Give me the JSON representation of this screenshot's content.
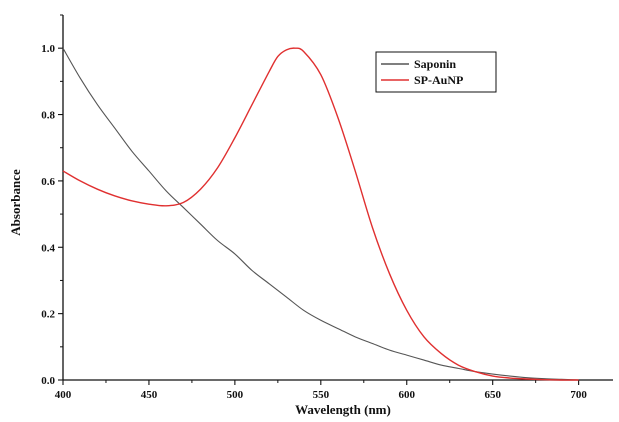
{
  "chart_data": {
    "type": "line",
    "title": "",
    "xlabel": "Wavelength (nm)",
    "ylabel": "Absorbance",
    "xlim": [
      400,
      720
    ],
    "ylim": [
      0,
      1.1
    ],
    "xticks": [
      400,
      450,
      500,
      550,
      600,
      650,
      700
    ],
    "xtick_labels": [
      "400",
      "450",
      "500",
      "550",
      "600",
      "650",
      "700"
    ],
    "yticks": [
      0,
      0.2,
      0.4,
      0.6,
      0.8,
      1.0
    ],
    "ytick_labels": [
      "0.0",
      "0.2",
      "0.4",
      "0.6",
      "0.8",
      "1.0"
    ],
    "grid": false,
    "legend_position": "top-right",
    "series": [
      {
        "name": "Saponin",
        "color": "#555555",
        "x": [
          400,
          410,
          420,
          430,
          440,
          450,
          460,
          470,
          480,
          490,
          500,
          510,
          520,
          530,
          540,
          550,
          560,
          570,
          580,
          590,
          600,
          610,
          620,
          630,
          640,
          650,
          660,
          670,
          680,
          690,
          700
        ],
        "y": [
          1.0,
          0.91,
          0.83,
          0.76,
          0.69,
          0.63,
          0.57,
          0.52,
          0.47,
          0.42,
          0.38,
          0.33,
          0.29,
          0.25,
          0.21,
          0.18,
          0.155,
          0.13,
          0.11,
          0.09,
          0.075,
          0.06,
          0.045,
          0.035,
          0.025,
          0.018,
          0.012,
          0.007,
          0.004,
          0.002,
          0.0
        ]
      },
      {
        "name": "SP-AuNP",
        "color": "#e03030",
        "x": [
          400,
          410,
          420,
          430,
          440,
          450,
          460,
          470,
          480,
          490,
          500,
          510,
          520,
          525,
          530,
          535,
          540,
          550,
          560,
          570,
          580,
          590,
          600,
          610,
          620,
          630,
          640,
          650,
          660,
          670,
          680,
          690,
          700
        ],
        "y": [
          0.63,
          0.6,
          0.575,
          0.555,
          0.54,
          0.53,
          0.525,
          0.535,
          0.575,
          0.64,
          0.73,
          0.83,
          0.93,
          0.975,
          0.995,
          1.0,
          0.99,
          0.92,
          0.79,
          0.63,
          0.46,
          0.32,
          0.21,
          0.13,
          0.08,
          0.045,
          0.025,
          0.012,
          0.006,
          0.003,
          0.001,
          0.0,
          0.0
        ]
      }
    ]
  }
}
